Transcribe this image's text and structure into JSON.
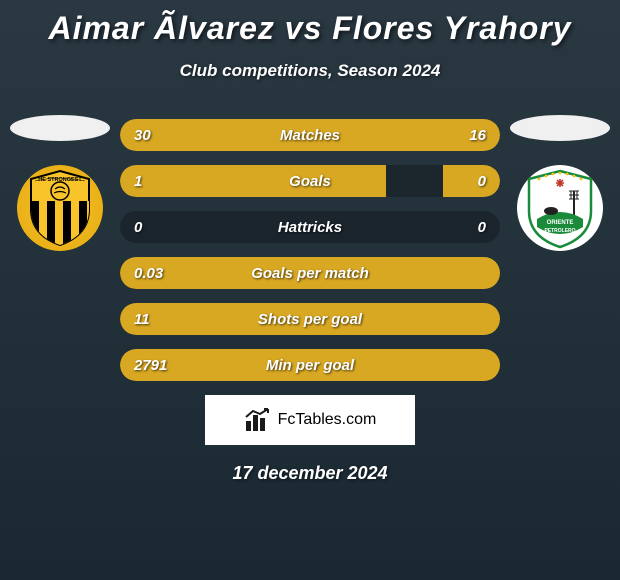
{
  "header": {
    "title": "Aimar Ãlvarez vs Flores Yrahory",
    "subtitle": "Club competitions, Season 2024"
  },
  "colors": {
    "bar_fill": "#d9a823",
    "bar_bg": "rgba(0,0,0,0.25)",
    "text": "#ffffff",
    "bg_top": "#2a3842",
    "bg_bottom": "#1a2832"
  },
  "teams": {
    "left": {
      "name": "The Strongest",
      "badge_primary": "#f8c42a",
      "badge_secondary": "#000000"
    },
    "right": {
      "name": "Oriente Petrolero",
      "badge_primary": "#ffffff",
      "badge_green": "#1b8a3a",
      "badge_red": "#c0392b"
    }
  },
  "stats": [
    {
      "label": "Matches",
      "left_val": "30",
      "right_val": "16",
      "left_pct": 65,
      "right_pct": 35
    },
    {
      "label": "Goals",
      "left_val": "1",
      "right_val": "0",
      "left_pct": 70,
      "right_pct": 15
    },
    {
      "label": "Hattricks",
      "left_val": "0",
      "right_val": "0",
      "left_pct": 0,
      "right_pct": 0
    },
    {
      "label": "Goals per match",
      "left_val": "0.03",
      "right_val": "",
      "left_pct": 100,
      "right_pct": 0
    },
    {
      "label": "Shots per goal",
      "left_val": "11",
      "right_val": "",
      "left_pct": 100,
      "right_pct": 0
    },
    {
      "label": "Min per goal",
      "left_val": "2791",
      "right_val": "",
      "left_pct": 100,
      "right_pct": 0
    }
  ],
  "footer": {
    "logo_text": "FcTables.com",
    "date": "17 december 2024"
  }
}
